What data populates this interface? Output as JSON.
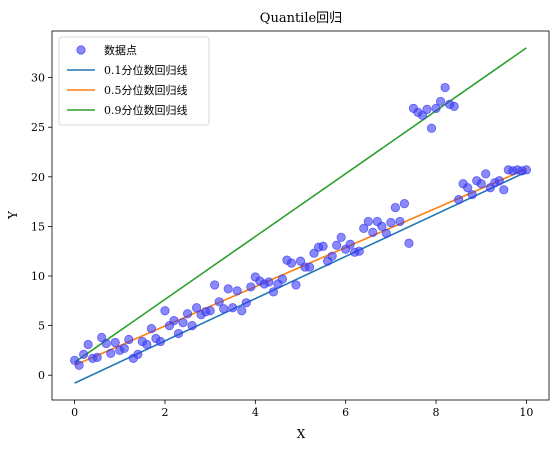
{
  "chart_data": {
    "type": "scatter",
    "title": "Quantile回归",
    "xlabel": "X",
    "ylabel": "Y",
    "xlim": [
      -0.5,
      10.5
    ],
    "ylim": [
      -2.5,
      34.7
    ],
    "xticks": [
      0,
      2,
      4,
      6,
      8,
      10
    ],
    "yticks": [
      0,
      5,
      10,
      15,
      20,
      25,
      30
    ],
    "grid": false,
    "legend_position": "top-left",
    "points": {
      "name": "数据点",
      "color": "#3b3bf5",
      "x": [
        0.0,
        0.1,
        0.2,
        0.3,
        0.4,
        0.5,
        0.6,
        0.7,
        0.8,
        0.9,
        1.0,
        1.1,
        1.2,
        1.3,
        1.4,
        1.5,
        1.6,
        1.7,
        1.8,
        1.9,
        2.0,
        2.1,
        2.2,
        2.3,
        2.4,
        2.5,
        2.6,
        2.7,
        2.8,
        2.9,
        3.0,
        3.1,
        3.2,
        3.3,
        3.4,
        3.5,
        3.6,
        3.7,
        3.8,
        3.9,
        4.0,
        4.1,
        4.2,
        4.3,
        4.4,
        4.5,
        4.6,
        4.7,
        4.8,
        4.9,
        5.0,
        5.1,
        5.2,
        5.3,
        5.4,
        5.5,
        5.6,
        5.7,
        5.8,
        5.9,
        6.0,
        6.1,
        6.2,
        6.3,
        6.4,
        6.5,
        6.6,
        6.7,
        6.8,
        6.9,
        7.0,
        7.1,
        7.2,
        7.3,
        7.4,
        7.5,
        7.6,
        7.7,
        7.8,
        7.9,
        8.0,
        8.1,
        8.2,
        8.3,
        8.4,
        8.5,
        8.6,
        8.7,
        8.8,
        8.9,
        9.0,
        9.1,
        9.2,
        9.3,
        9.4,
        9.5,
        9.6,
        9.7,
        9.8,
        9.9,
        10.0
      ],
      "y": [
        1.5,
        1.0,
        2.1,
        3.1,
        1.7,
        1.8,
        3.8,
        3.2,
        2.2,
        3.3,
        2.5,
        2.7,
        3.6,
        1.7,
        2.1,
        3.4,
        3.1,
        4.7,
        3.7,
        3.4,
        6.5,
        5.0,
        5.5,
        4.2,
        5.3,
        6.2,
        5.0,
        6.8,
        6.1,
        6.4,
        6.5,
        9.1,
        7.4,
        6.7,
        8.7,
        6.8,
        8.5,
        6.5,
        7.3,
        8.9,
        9.9,
        9.5,
        9.2,
        9.4,
        8.4,
        9.2,
        9.7,
        11.6,
        11.3,
        9.1,
        11.5,
        10.9,
        10.9,
        12.3,
        12.9,
        13.0,
        11.5,
        12.0,
        13.1,
        13.9,
        12.7,
        13.2,
        12.4,
        12.5,
        14.8,
        15.5,
        14.4,
        15.5,
        15.0,
        14.3,
        15.4,
        16.9,
        15.5,
        17.3,
        13.3,
        26.9,
        26.5,
        26.2,
        26.8,
        24.9,
        26.9,
        27.6,
        29.0,
        27.3,
        27.1,
        17.7,
        19.3,
        18.9,
        18.2,
        19.6,
        19.3,
        20.3,
        18.9,
        19.4,
        19.6,
        18.7,
        20.7,
        20.6,
        20.7,
        20.6,
        20.7
      ]
    },
    "lines": [
      {
        "name": "0.1分位数回归线",
        "color": "#1f77b4",
        "x": [
          0,
          10
        ],
        "y": [
          -0.8,
          20.5
        ]
      },
      {
        "name": "0.5分位数回归线",
        "color": "#ff7f0e",
        "x": [
          0,
          10
        ],
        "y": [
          1.0,
          20.8
        ]
      },
      {
        "name": "0.9分位数回归线",
        "color": "#2ca02c",
        "x": [
          0,
          10
        ],
        "y": [
          1.3,
          33.0
        ]
      }
    ]
  }
}
